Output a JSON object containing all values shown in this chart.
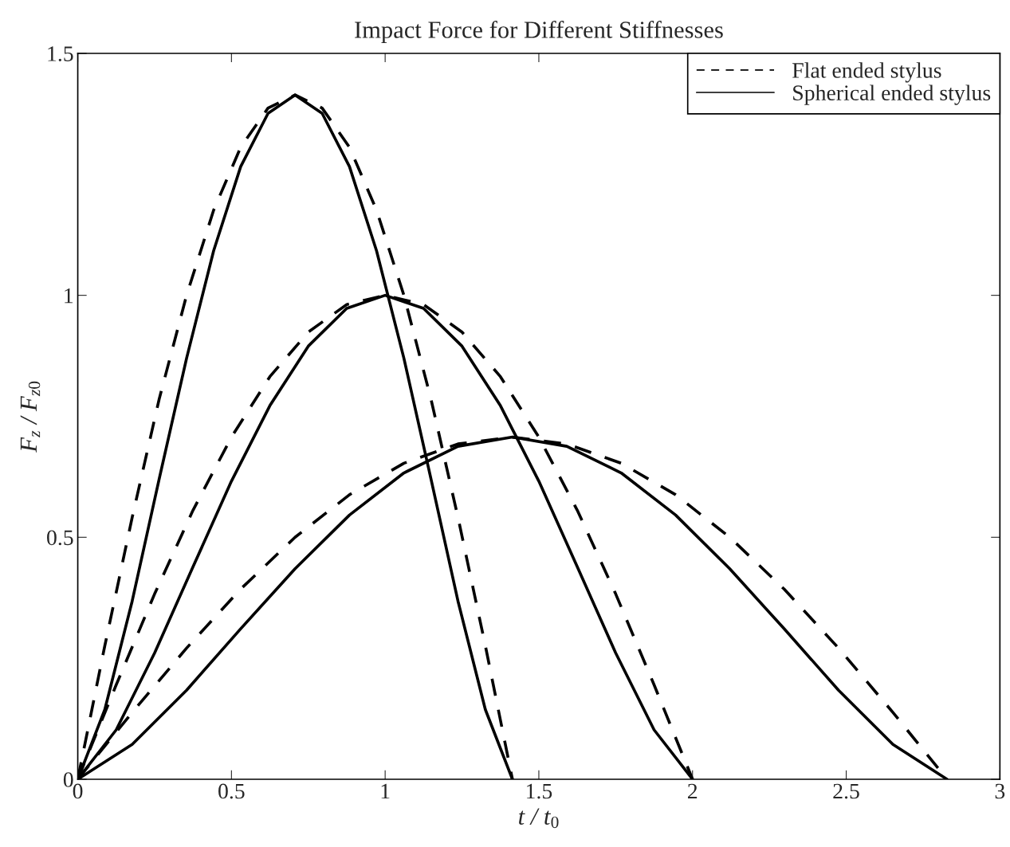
{
  "chart_data": {
    "type": "line",
    "title": "Impact Force for Different Stiffnesses",
    "xlabel": "t / t$_{0}$",
    "ylabel": "F$_{z}$ / F$_{z0}$",
    "xlim": [
      0,
      3
    ],
    "xticks": [
      0,
      0.5,
      1,
      1.5,
      2,
      2.5,
      3
    ],
    "ylim": [
      0,
      1.5
    ],
    "yticks": [
      0,
      0.5,
      1,
      1.5
    ],
    "grid": false,
    "legend": "top right",
    "series": [
      {
        "name": "Flat ended stylus",
        "color": "#000000",
        "line_style": "dashed",
        "x": [
          0,
          0.088,
          0.177,
          0.265,
          0.354,
          0.442,
          0.53,
          0.619,
          0.707,
          0.795,
          0.884,
          0.972,
          1.061,
          1.149,
          1.237,
          1.326,
          1.414
        ],
        "values": [
          0,
          0.276,
          0.541,
          0.786,
          1.0,
          1.176,
          1.306,
          1.387,
          1.414,
          1.387,
          1.306,
          1.176,
          1.0,
          0.786,
          0.541,
          0.276,
          0
        ]
      },
      {
        "name": "Spherical ended stylus",
        "color": "#000000",
        "line_style": "solid",
        "x": [
          0,
          0.088,
          0.177,
          0.265,
          0.354,
          0.442,
          0.53,
          0.619,
          0.707,
          0.795,
          0.884,
          0.972,
          1.061,
          1.149,
          1.237,
          1.326,
          1.414
        ],
        "values": [
          0,
          0.144,
          0.368,
          0.621,
          0.87,
          1.092,
          1.266,
          1.376,
          1.414,
          1.376,
          1.266,
          1.092,
          0.87,
          0.621,
          0.368,
          0.144,
          0
        ]
      },
      {
        "color": "#000000",
        "line_style": "dashed",
        "x": [
          0,
          0.125,
          0.25,
          0.375,
          0.5,
          0.625,
          0.75,
          0.875,
          1,
          1.125,
          1.25,
          1.375,
          1.5,
          1.625,
          1.75,
          1.875,
          2
        ],
        "values": [
          0,
          0.195,
          0.383,
          0.556,
          0.707,
          0.832,
          0.924,
          0.981,
          1,
          0.981,
          0.924,
          0.832,
          0.707,
          0.556,
          0.383,
          0.195,
          0
        ]
      },
      {
        "color": "#000000",
        "line_style": "solid",
        "x": [
          0,
          0.125,
          0.25,
          0.375,
          0.5,
          0.625,
          0.75,
          0.875,
          1,
          1.125,
          1.25,
          1.375,
          1.5,
          1.625,
          1.75,
          1.875,
          2
        ],
        "values": [
          0,
          0.102,
          0.261,
          0.439,
          0.616,
          0.772,
          0.895,
          0.973,
          1,
          0.973,
          0.895,
          0.772,
          0.616,
          0.439,
          0.261,
          0.102,
          0
        ]
      },
      {
        "color": "#000000",
        "line_style": "dashed",
        "x": [
          0,
          0.177,
          0.354,
          0.53,
          0.707,
          0.884,
          1.061,
          1.237,
          1.414,
          1.591,
          1.768,
          1.945,
          2.121,
          2.298,
          2.475,
          2.652,
          2.828
        ],
        "values": [
          0,
          0.138,
          0.271,
          0.393,
          0.5,
          0.588,
          0.653,
          0.693,
          0.707,
          0.693,
          0.653,
          0.588,
          0.5,
          0.393,
          0.271,
          0.138,
          0
        ]
      },
      {
        "color": "#000000",
        "line_style": "solid",
        "x": [
          0,
          0.177,
          0.354,
          0.53,
          0.707,
          0.884,
          1.061,
          1.237,
          1.414,
          1.591,
          1.768,
          1.945,
          2.121,
          2.298,
          2.475,
          2.652,
          2.828
        ],
        "values": [
          0,
          0.072,
          0.184,
          0.311,
          0.435,
          0.546,
          0.633,
          0.688,
          0.707,
          0.688,
          0.633,
          0.546,
          0.435,
          0.311,
          0.184,
          0.072,
          0
        ]
      }
    ]
  }
}
